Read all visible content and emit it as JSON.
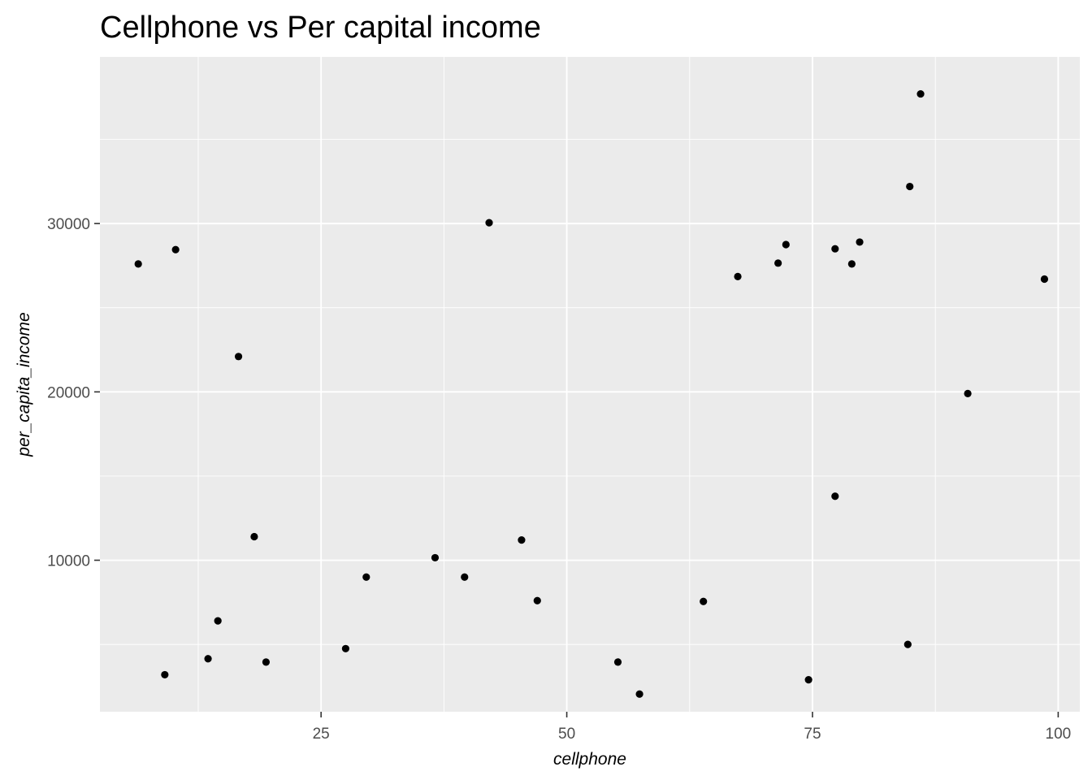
{
  "chart_data": {
    "type": "scatter",
    "title": "Cellphone vs Per capital income",
    "xlabel": "cellphone",
    "ylabel": "per_capita_income",
    "xlim": [
      2.5,
      102.2
    ],
    "ylim": [
      1000,
      39900
    ],
    "x_ticks": [
      25,
      50,
      75,
      100
    ],
    "y_ticks": [
      10000,
      20000,
      30000
    ],
    "x_tick_labels": [
      "25",
      "50",
      "75",
      "100"
    ],
    "y_tick_labels": [
      "10000",
      "20000",
      "30000"
    ],
    "grid": true,
    "legend": "none",
    "panel_color": "#ebebeb",
    "grid_color": "#ffffff",
    "point_color": "#000000",
    "points": [
      {
        "x": 6.4,
        "y": 27600
      },
      {
        "x": 10.2,
        "y": 28450
      },
      {
        "x": 9.1,
        "y": 3200
      },
      {
        "x": 13.5,
        "y": 4150
      },
      {
        "x": 14.5,
        "y": 6400
      },
      {
        "x": 16.6,
        "y": 22100
      },
      {
        "x": 18.2,
        "y": 11400
      },
      {
        "x": 19.4,
        "y": 3950
      },
      {
        "x": 27.5,
        "y": 4750
      },
      {
        "x": 29.6,
        "y": 9000
      },
      {
        "x": 36.6,
        "y": 10150
      },
      {
        "x": 39.6,
        "y": 9000
      },
      {
        "x": 42.1,
        "y": 30050
      },
      {
        "x": 45.4,
        "y": 11200
      },
      {
        "x": 47.0,
        "y": 7600
      },
      {
        "x": 55.2,
        "y": 3950
      },
      {
        "x": 57.4,
        "y": 2050
      },
      {
        "x": 63.9,
        "y": 7550
      },
      {
        "x": 67.4,
        "y": 26850
      },
      {
        "x": 71.5,
        "y": 27650
      },
      {
        "x": 72.3,
        "y": 28750
      },
      {
        "x": 74.6,
        "y": 2900
      },
      {
        "x": 77.3,
        "y": 28500
      },
      {
        "x": 77.3,
        "y": 13800
      },
      {
        "x": 79.0,
        "y": 27600
      },
      {
        "x": 79.8,
        "y": 28900
      },
      {
        "x": 84.7,
        "y": 5000
      },
      {
        "x": 84.9,
        "y": 32200
      },
      {
        "x": 86.0,
        "y": 37700
      },
      {
        "x": 90.8,
        "y": 19900
      },
      {
        "x": 98.6,
        "y": 26700
      }
    ]
  }
}
